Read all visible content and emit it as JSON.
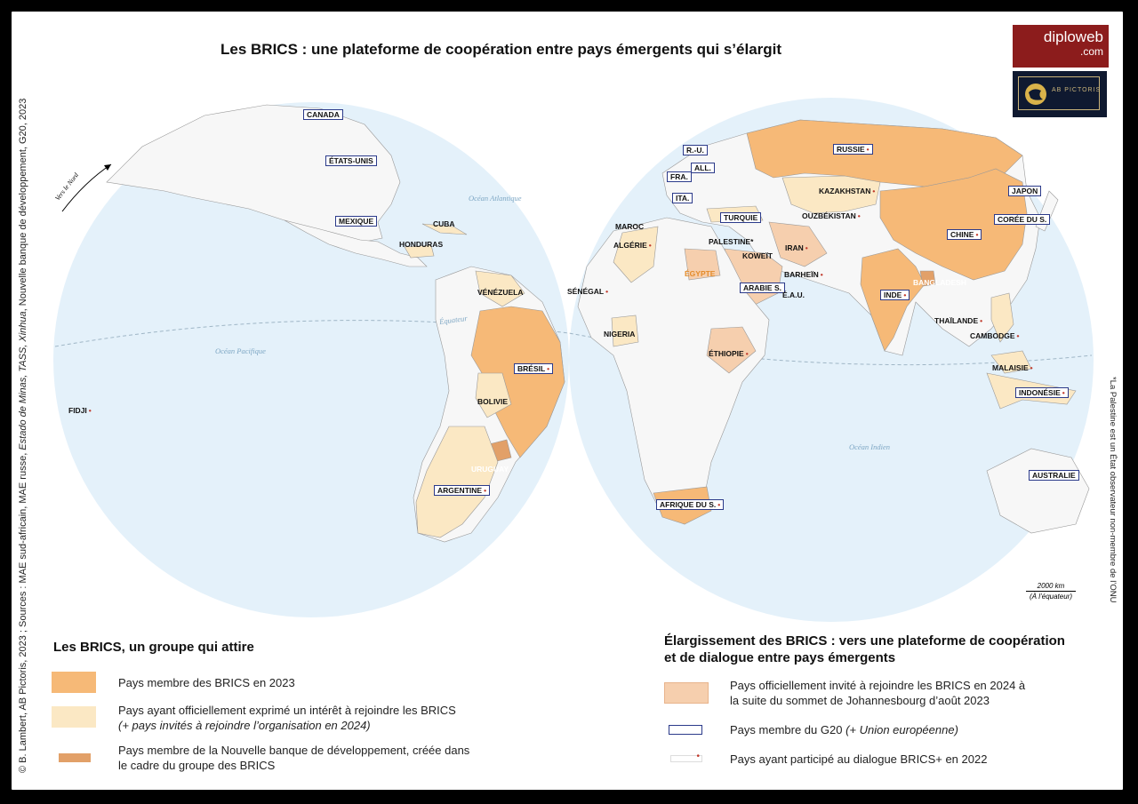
{
  "title": "Les BRICS : une plateforme de coopération entre pays émergents qui s’élargit",
  "credit": {
    "part1": "© B. Lambert, AB Pictoris, 2023 ; Sources : MAE sud-africain, MAE russe, ",
    "italic": "Estado de Minas, TASS, Xinhua",
    "part2": ", Nouvelle banque de développement, G20, 2023"
  },
  "side_note": "*La Palestine est un État observateur non-membre de l’ONU",
  "logos": {
    "diploweb_name": "diploweb",
    "diploweb_tld": ".com",
    "abpictoris": "AB PICTORIS"
  },
  "colors": {
    "brics_member": "#f6b977",
    "interest": "#fbe8c4",
    "ndb_member": "#e2a068",
    "invited": "#f6cfae",
    "g20_border": "#2b3a8a",
    "ocean": "#e4f1fa",
    "land": "#f5f5f5",
    "dialogue_dot": "#c0392b"
  },
  "map": {
    "north_label": "Vers le Nord",
    "oceans": {
      "atlantic": "Océan Atlantique",
      "pacific": "Océan Pacifique",
      "indian": "Océan Indien",
      "equator": "Équateur"
    },
    "scale_value": "2000 km",
    "scale_note": "(À l’équateur)",
    "countries": {
      "canada": "CANADA",
      "usa": "ÉTATS-UNIS",
      "mexico": "MEXIQUE",
      "cuba": "CUBA",
      "honduras": "HONDURAS",
      "venezuela": "VÉNÉZUELA",
      "brazil": "BRÉSIL",
      "bolivia": "BOLIVIE",
      "uruguay": "URUGUAY",
      "argentina": "ARGENTINE",
      "fiji": "FIDJI",
      "russia": "RUSSIE",
      "uk": "R.-U.",
      "germany": "ALL.",
      "france": "FRA.",
      "italy": "ITA.",
      "kazakhstan": "KAZAKHSTAN",
      "uzbekistan": "OUZBÉKISTAN",
      "turkey": "TURQUIE",
      "morocco": "MAROC",
      "algeria": "ALGÉRIE",
      "palestine": "PALESTINE*",
      "iran": "IRAN",
      "kuwait": "KOWEÏT",
      "bahrain": "BARHEÏN",
      "egypt": "ÉGYPTE",
      "saudi": "ARABIE S.",
      "uae": "É.A.U.",
      "senegal": "SÉNÉGAL",
      "nigeria": "NIGERIA",
      "ethiopia": "ÉTHIOPIE",
      "south_africa": "AFRIQUE DU S.",
      "china": "CHINE",
      "japan": "JAPON",
      "south_korea": "CORÉE DU S.",
      "india": "INDE",
      "bangladesh": "BANGLADESH",
      "thailand": "THAÏLANDE",
      "cambodia": "CAMBODGE",
      "malaysia": "MALAISIE",
      "indonesia": "INDONÉSIE",
      "australia": "AUSTRALIE"
    }
  },
  "legend_left": {
    "heading": "Les BRICS, un groupe qui attire",
    "items": [
      {
        "text": "Pays membre des BRICS en 2023"
      },
      {
        "text": "Pays ayant officiellement exprimé un intérêt à rejoindre les BRICS",
        "note": "(+ pays invités à rejoindre l’organisation en 2024)"
      },
      {
        "text": "Pays membre de la Nouvelle banque de développement, créée dans",
        "text2": "le cadre du groupe des BRICS"
      }
    ]
  },
  "legend_right": {
    "heading1": "Élargissement des BRICS : vers une plateforme de coopération",
    "heading2": "et de dialogue entre pays émergents",
    "items": [
      {
        "text": "Pays officiellement invité à rejoindre les BRICS en 2024 à",
        "text2": "la suite du sommet de Johannesbourg d’août 2023"
      },
      {
        "text": "Pays membre du G20 ",
        "note": "(+ Union européenne)"
      },
      {
        "text": "Pays ayant participé au dialogue BRICS+ en 2022"
      }
    ]
  }
}
